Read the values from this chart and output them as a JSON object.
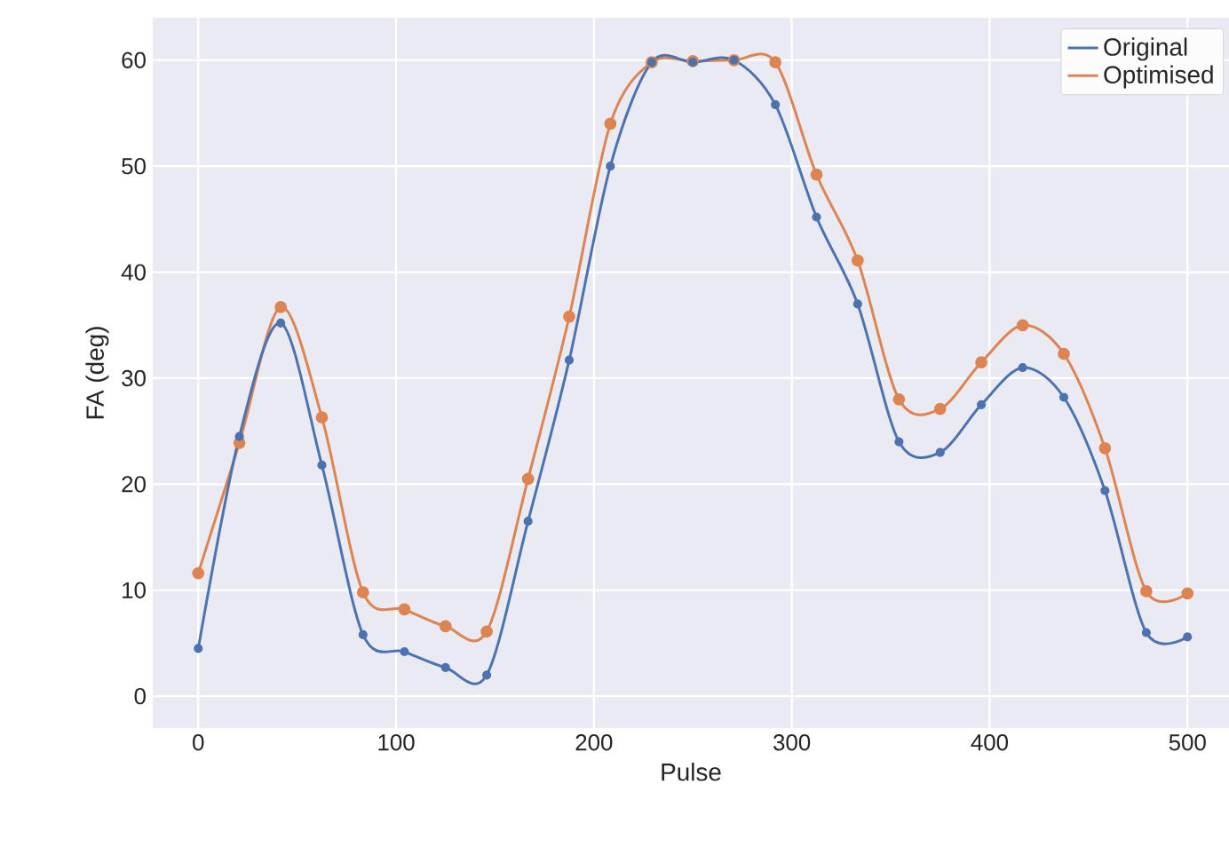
{
  "chart_data": {
    "type": "line",
    "xlabel": "Pulse",
    "ylabel": "FA (deg)",
    "x": [
      0,
      20.8,
      41.7,
      62.5,
      83.3,
      104.2,
      125,
      145.8,
      166.7,
      187.5,
      208.3,
      229.2,
      250,
      270.8,
      291.7,
      312.5,
      333.3,
      354.2,
      375,
      395.8,
      416.7,
      437.5,
      458.3,
      479.2,
      500
    ],
    "series": [
      {
        "name": "Original",
        "color": "#4c72b0",
        "values": [
          4.5,
          24.5,
          35.2,
          21.8,
          5.8,
          4.2,
          2.7,
          2.0,
          16.5,
          31.7,
          50.0,
          59.8,
          59.8,
          60.0,
          55.8,
          45.2,
          37.0,
          24.0,
          23.0,
          27.5,
          31.0,
          28.2,
          19.4,
          6.0,
          5.6
        ]
      },
      {
        "name": "Optimised",
        "color": "#dd8452",
        "values": [
          11.6,
          23.9,
          36.7,
          26.3,
          9.8,
          8.2,
          6.6,
          6.1,
          20.5,
          35.8,
          54.0,
          59.8,
          59.9,
          60.0,
          59.8,
          49.2,
          41.1,
          28.0,
          27.1,
          31.5,
          35.0,
          32.3,
          23.4,
          9.9,
          9.7
        ]
      }
    ],
    "xlim": [
      -23,
      521
    ],
    "ylim": [
      -3,
      64
    ],
    "xticks": [
      0,
      100,
      200,
      300,
      400,
      500
    ],
    "yticks": [
      0,
      10,
      20,
      30,
      40,
      50,
      60
    ],
    "grid": true,
    "legend": "top right",
    "marker": "circle",
    "line_style": "solid"
  }
}
